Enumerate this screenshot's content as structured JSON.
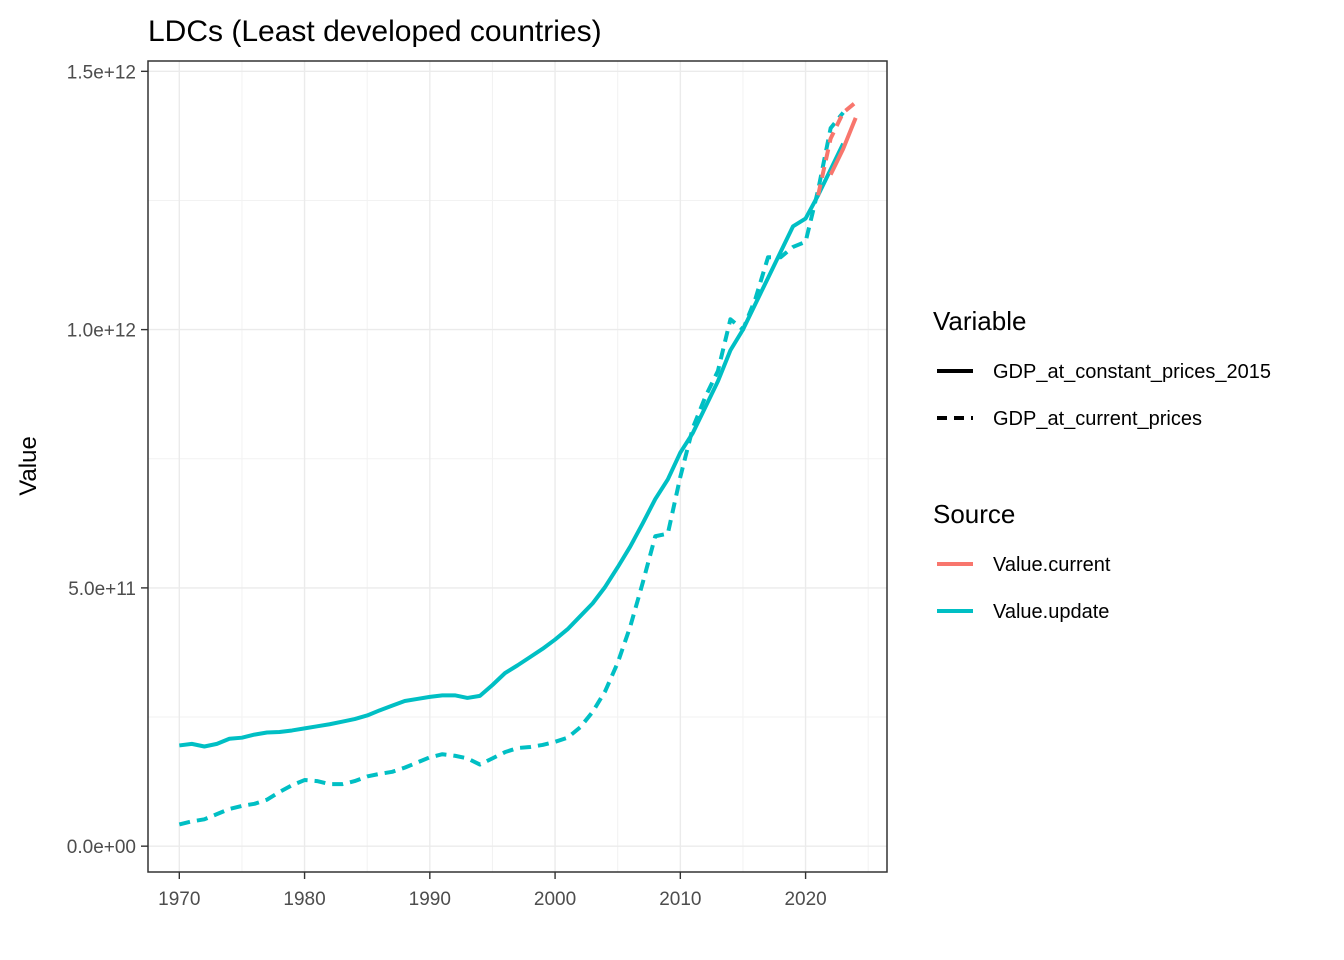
{
  "chart_data": {
    "type": "line",
    "title": "LDCs (Least developed countries)",
    "xlabel": "",
    "ylabel": "Value",
    "xlim": [
      1967.5,
      2026.5
    ],
    "ylim": [
      -50000000000.0,
      1520000000000.0
    ],
    "x_ticks": [
      1970,
      1980,
      1990,
      2000,
      2010,
      2020
    ],
    "x_tick_labels": [
      "1970",
      "1980",
      "1990",
      "2000",
      "2010",
      "2020"
    ],
    "y_ticks": [
      0,
      500000000000.0,
      1000000000000.0,
      1500000000000.0
    ],
    "y_tick_labels": [
      "0.0e+00",
      "5.0e+11",
      "1.0e+12",
      "1.5e+12"
    ],
    "grid": true,
    "legend_position": "right",
    "legends": [
      {
        "title": "Variable",
        "entries": [
          {
            "label": "GDP_at_constant_prices_2015",
            "linetype": "solid",
            "color": "#000000"
          },
          {
            "label": "GDP_at_current_prices",
            "linetype": "dashed",
            "color": "#000000"
          }
        ]
      },
      {
        "title": "Source",
        "entries": [
          {
            "label": "Value.current",
            "color": "#F8766D"
          },
          {
            "label": "Value.update",
            "color": "#00BFC4"
          }
        ]
      }
    ],
    "series": [
      {
        "variable": "GDP_at_constant_prices_2015",
        "source": "Value.current",
        "color": "#F8766D",
        "linetype": "solid",
        "points": [
          [
            2022,
            1300000000000.0
          ],
          [
            2023,
            1350000000000.0
          ],
          [
            2024,
            1410000000000.0
          ]
        ]
      },
      {
        "variable": "GDP_at_current_prices",
        "source": "Value.current",
        "color": "#F8766D",
        "linetype": "dashed",
        "points": [
          [
            2021,
            1260000000000.0
          ],
          [
            2022,
            1370000000000.0
          ],
          [
            2023,
            1420000000000.0
          ],
          [
            2024,
            1440000000000.0
          ]
        ]
      },
      {
        "variable": "GDP_at_constant_prices_2015",
        "source": "Value.update",
        "color": "#00BFC4",
        "linetype": "solid",
        "points": [
          [
            1970,
            195000000000.0
          ],
          [
            1971,
            198000000000.0
          ],
          [
            1972,
            193000000000.0
          ],
          [
            1973,
            198000000000.0
          ],
          [
            1974,
            208000000000.0
          ],
          [
            1975,
            210000000000.0
          ],
          [
            1976,
            216000000000.0
          ],
          [
            1977,
            220000000000.0
          ],
          [
            1978,
            221000000000.0
          ],
          [
            1979,
            224000000000.0
          ],
          [
            1980,
            228000000000.0
          ],
          [
            1981,
            232000000000.0
          ],
          [
            1982,
            236000000000.0
          ],
          [
            1983,
            241000000000.0
          ],
          [
            1984,
            246000000000.0
          ],
          [
            1985,
            253000000000.0
          ],
          [
            1986,
            263000000000.0
          ],
          [
            1987,
            272000000000.0
          ],
          [
            1988,
            281000000000.0
          ],
          [
            1989,
            285000000000.0
          ],
          [
            1990,
            289000000000.0
          ],
          [
            1991,
            292000000000.0
          ],
          [
            1992,
            292000000000.0
          ],
          [
            1993,
            287000000000.0
          ],
          [
            1994,
            291000000000.0
          ],
          [
            1995,
            312000000000.0
          ],
          [
            1996,
            335000000000.0
          ],
          [
            1997,
            350000000000.0
          ],
          [
            1998,
            366000000000.0
          ],
          [
            1999,
            382000000000.0
          ],
          [
            2000,
            400000000000.0
          ],
          [
            2001,
            420000000000.0
          ],
          [
            2002,
            445000000000.0
          ],
          [
            2003,
            470000000000.0
          ],
          [
            2004,
            502000000000.0
          ],
          [
            2005,
            540000000000.0
          ],
          [
            2006,
            580000000000.0
          ],
          [
            2007,
            625000000000.0
          ],
          [
            2008,
            672000000000.0
          ],
          [
            2009,
            710000000000.0
          ],
          [
            2010,
            762000000000.0
          ],
          [
            2011,
            800000000000.0
          ],
          [
            2012,
            850000000000.0
          ],
          [
            2013,
            900000000000.0
          ],
          [
            2014,
            960000000000.0
          ],
          [
            2015,
            1000000000000.0
          ],
          [
            2016,
            1050000000000.0
          ],
          [
            2017,
            1100000000000.0
          ],
          [
            2018,
            1150000000000.0
          ],
          [
            2019,
            1200000000000.0
          ],
          [
            2020,
            1215000000000.0
          ],
          [
            2021,
            1260000000000.0
          ],
          [
            2022,
            1310000000000.0
          ],
          [
            2023,
            1360000000000.0
          ]
        ]
      },
      {
        "variable": "GDP_at_current_prices",
        "source": "Value.update",
        "color": "#00BFC4",
        "linetype": "dashed",
        "points": [
          [
            1970,
            42000000000.0
          ],
          [
            1971,
            48000000000.0
          ],
          [
            1972,
            52000000000.0
          ],
          [
            1973,
            62000000000.0
          ],
          [
            1974,
            72000000000.0
          ],
          [
            1975,
            78000000000.0
          ],
          [
            1976,
            82000000000.0
          ],
          [
            1977,
            90000000000.0
          ],
          [
            1978,
            105000000000.0
          ],
          [
            1979,
            118000000000.0
          ],
          [
            1980,
            128000000000.0
          ],
          [
            1981,
            126000000000.0
          ],
          [
            1982,
            120000000000.0
          ],
          [
            1983,
            120000000000.0
          ],
          [
            1984,
            126000000000.0
          ],
          [
            1985,
            135000000000.0
          ],
          [
            1986,
            140000000000.0
          ],
          [
            1987,
            144000000000.0
          ],
          [
            1988,
            152000000000.0
          ],
          [
            1989,
            162000000000.0
          ],
          [
            1990,
            172000000000.0
          ],
          [
            1991,
            178000000000.0
          ],
          [
            1992,
            175000000000.0
          ],
          [
            1993,
            170000000000.0
          ],
          [
            1994,
            158000000000.0
          ],
          [
            1995,
            170000000000.0
          ],
          [
            1996,
            182000000000.0
          ],
          [
            1997,
            190000000000.0
          ],
          [
            1998,
            192000000000.0
          ],
          [
            1999,
            196000000000.0
          ],
          [
            2000,
            202000000000.0
          ],
          [
            2001,
            210000000000.0
          ],
          [
            2002,
            230000000000.0
          ],
          [
            2003,
            260000000000.0
          ],
          [
            2004,
            300000000000.0
          ],
          [
            2005,
            355000000000.0
          ],
          [
            2006,
            425000000000.0
          ],
          [
            2007,
            510000000000.0
          ],
          [
            2008,
            600000000000.0
          ],
          [
            2009,
            605000000000.0
          ],
          [
            2010,
            715000000000.0
          ],
          [
            2011,
            810000000000.0
          ],
          [
            2012,
            870000000000.0
          ],
          [
            2013,
            920000000000.0
          ],
          [
            2014,
            1020000000000.0
          ],
          [
            2015,
            1000000000000.0
          ],
          [
            2016,
            1060000000000.0
          ],
          [
            2017,
            1140000000000.0
          ],
          [
            2018,
            1140000000000.0
          ],
          [
            2019,
            1160000000000.0
          ],
          [
            2020,
            1170000000000.0
          ],
          [
            2021,
            1270000000000.0
          ],
          [
            2022,
            1390000000000.0
          ],
          [
            2023,
            1420000000000.0
          ]
        ]
      }
    ]
  }
}
